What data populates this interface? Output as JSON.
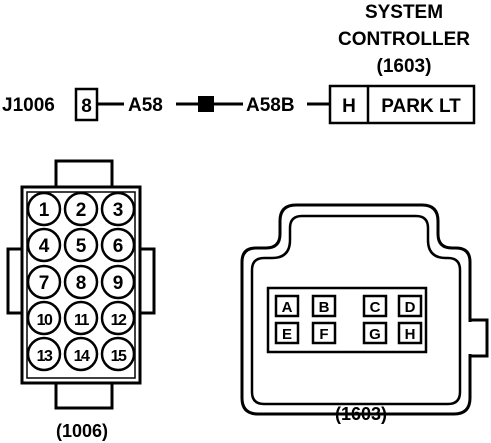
{
  "controller": {
    "title_line1": "SYSTEM",
    "title_line2": "CONTROLLER",
    "number": "(1603)",
    "pin": "H",
    "function": "PARK LT"
  },
  "connector_j1006": {
    "ref": "J1006",
    "pin": "8"
  },
  "wires": {
    "left": "A58",
    "right": "A58B"
  },
  "connector_1006": {
    "caption": "(1006)",
    "pins": [
      "1",
      "2",
      "3",
      "4",
      "5",
      "6",
      "7",
      "8",
      "9",
      "10",
      "11",
      "12",
      "13",
      "14",
      "15"
    ]
  },
  "connector_1603": {
    "caption": "(1603)",
    "pins": [
      "A",
      "B",
      "C",
      "D",
      "E",
      "F",
      "G",
      "H"
    ]
  }
}
